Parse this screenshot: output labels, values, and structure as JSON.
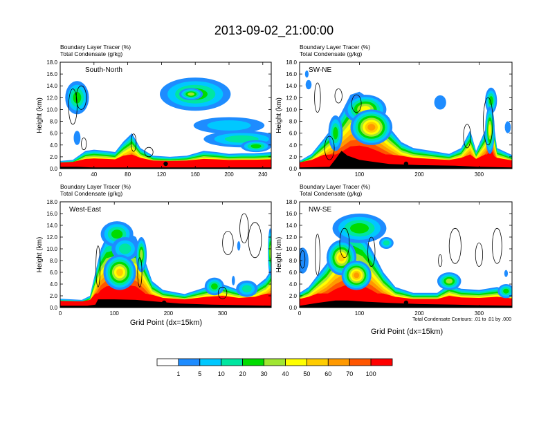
{
  "title": "2013-09-02_21:00:00",
  "panel_header": {
    "line1_label": "Boundary Layer Tracer",
    "line1_units": "(%)",
    "line2_label": "Total Condensate",
    "line2_units": "(g/kg)"
  },
  "ylabel": "Height (km)",
  "xlabel": "Grid Point (dx=15km)",
  "contour_note": "Total Condensate Contours: .01 to .01 by .000",
  "colorbar": {
    "labels": [
      "1",
      "5",
      "10",
      "20",
      "30",
      "40",
      "50",
      "60",
      "70",
      "100"
    ],
    "colors": [
      "#ffffff",
      "#1e8cff",
      "#00c8ff",
      "#00e6a0",
      "#00dc00",
      "#a0e632",
      "#ffff00",
      "#ffcc00",
      "#ff9900",
      "#ff5500",
      "#ff0000"
    ]
  },
  "chart_data": [
    {
      "type": "heatmap",
      "name": "South-North",
      "label": "South-North",
      "xlim": [
        0,
        250
      ],
      "xticks": [
        "0",
        "40",
        "80",
        "120",
        "160",
        "200",
        "240"
      ],
      "ylim": [
        0,
        18
      ],
      "yticks": [
        "0.0",
        "2.0",
        "4.0",
        "6.0",
        "8.0",
        "10.0",
        "12.0",
        "14.0",
        "16.0",
        "18.0"
      ],
      "marker_x": 125,
      "surface_km": [
        [
          0,
          0.3
        ],
        [
          20,
          0.3
        ],
        [
          40,
          0.2
        ],
        [
          60,
          0.2
        ],
        [
          80,
          0.2
        ],
        [
          100,
          0.2
        ],
        [
          120,
          0.2
        ],
        [
          140,
          0.2
        ],
        [
          160,
          0.2
        ],
        [
          180,
          0.2
        ],
        [
          200,
          0.2
        ],
        [
          220,
          0.2
        ],
        [
          250,
          0.2
        ]
      ],
      "tracer_top_km": [
        [
          0,
          1.3
        ],
        [
          15,
          1.5
        ],
        [
          30,
          3.0
        ],
        [
          40,
          3.2
        ],
        [
          55,
          3.0
        ],
        [
          65,
          2.8
        ],
        [
          75,
          4.6
        ],
        [
          85,
          6.0
        ],
        [
          95,
          3.5
        ],
        [
          110,
          2.2
        ],
        [
          130,
          2.0
        ],
        [
          150,
          2.2
        ],
        [
          170,
          3.0
        ],
        [
          185,
          2.8
        ],
        [
          200,
          2.5
        ],
        [
          215,
          2.6
        ],
        [
          230,
          2.6
        ],
        [
          250,
          2.8
        ]
      ],
      "blobs": [
        {
          "x": 20,
          "y": 12.0,
          "rx": 14,
          "ry": 2.8,
          "peak": 4
        },
        {
          "x": 20,
          "y": 5.2,
          "rx": 4,
          "ry": 1.2,
          "peak": 1
        },
        {
          "x": 160,
          "y": 12.6,
          "rx": 42,
          "ry": 2.8,
          "peak": 4
        },
        {
          "x": 155,
          "y": 12.6,
          "rx": 14,
          "ry": 1.0,
          "peak": 5
        },
        {
          "x": 200,
          "y": 7.3,
          "rx": 42,
          "ry": 1.4,
          "peak": 2
        },
        {
          "x": 215,
          "y": 5.0,
          "rx": 45,
          "ry": 1.4,
          "peak": 3
        },
        {
          "x": 232,
          "y": 3.8,
          "rx": 18,
          "ry": 1.0,
          "peak": 4
        }
      ],
      "contours": [
        {
          "x": 15,
          "y": 10.5,
          "rx": 5,
          "ry": 3.0
        },
        {
          "x": 25,
          "y": 12.0,
          "rx": 6,
          "ry": 2.0
        },
        {
          "x": 87,
          "y": 4.4,
          "rx": 3,
          "ry": 1.5
        },
        {
          "x": 105,
          "y": 2.8,
          "rx": 5,
          "ry": 0.8
        },
        {
          "x": 28,
          "y": 4.2,
          "rx": 3,
          "ry": 1.0
        }
      ]
    },
    {
      "type": "heatmap",
      "name": "SW-NE",
      "label": "SW-NE",
      "xlim": [
        0,
        355
      ],
      "xticks": [
        "0",
        "100",
        "200",
        "300"
      ],
      "ylim": [
        0,
        18
      ],
      "yticks": [
        "0.0",
        "2.0",
        "4.0",
        "6.0",
        "8.0",
        "10.0",
        "12.0",
        "14.0",
        "16.0",
        "18.0"
      ],
      "marker_x": 178,
      "surface_km": [
        [
          0,
          0.2
        ],
        [
          50,
          0.3
        ],
        [
          60,
          1.6
        ],
        [
          70,
          3.0
        ],
        [
          80,
          2.2
        ],
        [
          100,
          1.5
        ],
        [
          120,
          1.2
        ],
        [
          150,
          0.8
        ],
        [
          200,
          0.6
        ],
        [
          260,
          0.5
        ],
        [
          300,
          0.3
        ],
        [
          355,
          0.2
        ]
      ],
      "tracer_top_km": [
        [
          0,
          1.3
        ],
        [
          20,
          2.5
        ],
        [
          40,
          5.0
        ],
        [
          55,
          7.0
        ],
        [
          70,
          9.5
        ],
        [
          85,
          12.5
        ],
        [
          100,
          13.0
        ],
        [
          115,
          12.0
        ],
        [
          130,
          10.0
        ],
        [
          150,
          7.0
        ],
        [
          170,
          4.5
        ],
        [
          190,
          3.5
        ],
        [
          220,
          3.0
        ],
        [
          250,
          2.5
        ],
        [
          270,
          3.5
        ],
        [
          285,
          6.5
        ],
        [
          295,
          3.0
        ],
        [
          310,
          6.5
        ],
        [
          320,
          11.0
        ],
        [
          330,
          3.5
        ],
        [
          355,
          2.3
        ]
      ],
      "blobs": [
        {
          "x": 12,
          "y": 16.0,
          "rx": 3,
          "ry": 0.6,
          "peak": 1
        },
        {
          "x": 15,
          "y": 14.2,
          "rx": 5,
          "ry": 0.8,
          "peak": 1
        },
        {
          "x": 110,
          "y": 10.0,
          "rx": 35,
          "ry": 2.5,
          "peak": 6
        },
        {
          "x": 120,
          "y": 7.0,
          "rx": 35,
          "ry": 3.0,
          "peak": 8
        },
        {
          "x": 60,
          "y": 6.0,
          "rx": 12,
          "ry": 3.0,
          "peak": 4
        },
        {
          "x": 235,
          "y": 11.2,
          "rx": 10,
          "ry": 1.2,
          "peak": 1
        },
        {
          "x": 320,
          "y": 11.5,
          "rx": 10,
          "ry": 2.2,
          "peak": 4
        },
        {
          "x": 318,
          "y": 6.5,
          "rx": 8,
          "ry": 4.0,
          "peak": 6
        },
        {
          "x": 348,
          "y": 7.0,
          "rx": 5,
          "ry": 1.0,
          "peak": 1
        }
      ],
      "contours": [
        {
          "x": 30,
          "y": 12.0,
          "rx": 5,
          "ry": 2.5
        },
        {
          "x": 65,
          "y": 12.3,
          "rx": 6,
          "ry": 1.2
        },
        {
          "x": 95,
          "y": 11.0,
          "rx": 8,
          "ry": 1.5
        },
        {
          "x": 50,
          "y": 3.5,
          "rx": 8,
          "ry": 2.0
        },
        {
          "x": 315,
          "y": 8.0,
          "rx": 8,
          "ry": 4.0
        },
        {
          "x": 280,
          "y": 5.5,
          "rx": 6,
          "ry": 2.0
        }
      ]
    },
    {
      "type": "heatmap",
      "name": "West-East",
      "label": "West-East",
      "xlim": [
        0,
        390
      ],
      "xticks": [
        "0",
        "100",
        "200",
        "300"
      ],
      "ylim": [
        0,
        18
      ],
      "yticks": [
        "0.0",
        "2.0",
        "4.0",
        "6.0",
        "8.0",
        "10.0",
        "12.0",
        "14.0",
        "16.0",
        "18.0"
      ],
      "marker_x": 192,
      "surface_km": [
        [
          0,
          0.3
        ],
        [
          50,
          0.3
        ],
        [
          65,
          0.5
        ],
        [
          70,
          1.4
        ],
        [
          100,
          1.4
        ],
        [
          140,
          1.3
        ],
        [
          180,
          1.0
        ],
        [
          220,
          0.7
        ],
        [
          280,
          0.5
        ],
        [
          340,
          0.4
        ],
        [
          390,
          0.3
        ]
      ],
      "tracer_top_km": [
        [
          0,
          1.5
        ],
        [
          40,
          1.3
        ],
        [
          55,
          2.0
        ],
        [
          65,
          6.0
        ],
        [
          75,
          10.0
        ],
        [
          85,
          12.0
        ],
        [
          100,
          12.5
        ],
        [
          120,
          13.0
        ],
        [
          140,
          12.0
        ],
        [
          155,
          8.5
        ],
        [
          170,
          4.5
        ],
        [
          190,
          3.0
        ],
        [
          230,
          2.3
        ],
        [
          270,
          3.5
        ],
        [
          300,
          4.0
        ],
        [
          330,
          3.0
        ],
        [
          360,
          3.5
        ],
        [
          380,
          5.0
        ],
        [
          390,
          6.5
        ]
      ],
      "blobs": [
        {
          "x": 105,
          "y": 12.5,
          "rx": 30,
          "ry": 2.2,
          "peak": 4
        },
        {
          "x": 120,
          "y": 10.0,
          "rx": 25,
          "ry": 2.0,
          "peak": 3
        },
        {
          "x": 110,
          "y": 6.0,
          "rx": 30,
          "ry": 3.0,
          "peak": 7
        },
        {
          "x": 150,
          "y": 9.0,
          "rx": 10,
          "ry": 3.0,
          "peak": 5
        },
        {
          "x": 285,
          "y": 3.6,
          "rx": 18,
          "ry": 1.5,
          "peak": 4
        },
        {
          "x": 345,
          "y": 3.2,
          "rx": 20,
          "ry": 1.4,
          "peak": 3
        },
        {
          "x": 388,
          "y": 9.5,
          "rx": 4,
          "ry": 4.0,
          "peak": 5
        },
        {
          "x": 330,
          "y": 10.5,
          "rx": 3,
          "ry": 0.8,
          "peak": 1
        },
        {
          "x": 320,
          "y": 4.6,
          "rx": 3,
          "ry": 0.8,
          "peak": 1
        }
      ],
      "contours": [
        {
          "x": 70,
          "y": 7.0,
          "rx": 4,
          "ry": 3.5
        },
        {
          "x": 147,
          "y": 6.0,
          "rx": 4,
          "ry": 2.5
        },
        {
          "x": 310,
          "y": 11.0,
          "rx": 10,
          "ry": 2.0
        },
        {
          "x": 340,
          "y": 13.5,
          "rx": 8,
          "ry": 2.5
        },
        {
          "x": 360,
          "y": 11.5,
          "rx": 12,
          "ry": 3.0
        },
        {
          "x": 300,
          "y": 2.5,
          "rx": 8,
          "ry": 1.0
        }
      ]
    },
    {
      "type": "heatmap",
      "name": "NW-SE",
      "label": "NW-SE",
      "xlim": [
        0,
        355
      ],
      "xticks": [
        "0",
        "100",
        "200",
        "300"
      ],
      "ylim": [
        0,
        18
      ],
      "yticks": [
        "0.0",
        "2.0",
        "4.0",
        "6.0",
        "8.0",
        "10.0",
        "12.0",
        "14.0",
        "16.0",
        "18.0"
      ],
      "marker_x": 178,
      "surface_km": [
        [
          0,
          0.3
        ],
        [
          30,
          0.8
        ],
        [
          60,
          1.2
        ],
        [
          80,
          1.2
        ],
        [
          110,
          1.0
        ],
        [
          150,
          0.8
        ],
        [
          200,
          0.6
        ],
        [
          260,
          0.5
        ],
        [
          300,
          0.4
        ],
        [
          355,
          0.3
        ]
      ],
      "tracer_top_km": [
        [
          0,
          2.5
        ],
        [
          15,
          3.5
        ],
        [
          30,
          5.5
        ],
        [
          45,
          7.5
        ],
        [
          60,
          10.5
        ],
        [
          75,
          12.5
        ],
        [
          90,
          13.5
        ],
        [
          105,
          12.5
        ],
        [
          120,
          10.0
        ],
        [
          140,
          6.0
        ],
        [
          160,
          3.5
        ],
        [
          190,
          2.5
        ],
        [
          230,
          2.5
        ],
        [
          250,
          4.0
        ],
        [
          270,
          3.2
        ],
        [
          300,
          3.0
        ],
        [
          330,
          3.5
        ],
        [
          355,
          2.8
        ]
      ],
      "blobs": [
        {
          "x": 5,
          "y": 8.0,
          "rx": 10,
          "ry": 2.2,
          "peak": 1
        },
        {
          "x": 100,
          "y": 13.5,
          "rx": 45,
          "ry": 2.5,
          "peak": 4
        },
        {
          "x": 145,
          "y": 11.0,
          "rx": 12,
          "ry": 1.0,
          "peak": 3
        },
        {
          "x": 70,
          "y": 8.5,
          "rx": 25,
          "ry": 3.0,
          "peak": 7
        },
        {
          "x": 95,
          "y": 5.5,
          "rx": 25,
          "ry": 2.5,
          "peak": 8
        },
        {
          "x": 250,
          "y": 4.5,
          "rx": 20,
          "ry": 1.5,
          "peak": 5
        },
        {
          "x": 345,
          "y": 2.8,
          "rx": 14,
          "ry": 1.2,
          "peak": 4
        },
        {
          "x": 345,
          "y": 5.8,
          "rx": 3,
          "ry": 0.6,
          "peak": 1
        }
      ],
      "contours": [
        {
          "x": 5,
          "y": 8.2,
          "rx": 4,
          "ry": 1.5
        },
        {
          "x": 30,
          "y": 9.0,
          "rx": 4,
          "ry": 3.5
        },
        {
          "x": 75,
          "y": 11.0,
          "rx": 8,
          "ry": 2.5
        },
        {
          "x": 120,
          "y": 9.5,
          "rx": 6,
          "ry": 2.5
        },
        {
          "x": 260,
          "y": 10.5,
          "rx": 10,
          "ry": 3.0
        },
        {
          "x": 300,
          "y": 9.0,
          "rx": 6,
          "ry": 2.0
        },
        {
          "x": 330,
          "y": 10.5,
          "rx": 8,
          "ry": 3.0
        },
        {
          "x": 235,
          "y": 8.0,
          "rx": 3,
          "ry": 1.0
        }
      ]
    }
  ]
}
